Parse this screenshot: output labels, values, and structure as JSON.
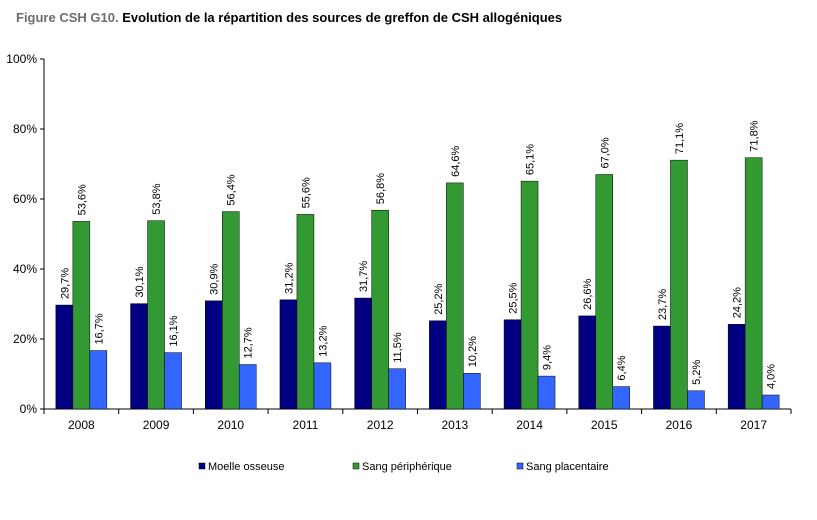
{
  "title": {
    "prefix": "Figure CSH G10.",
    "main": "Evolution de la répartition des sources de greffon de CSH allogéniques"
  },
  "colors": {
    "moelle": "#000080",
    "sang_peripherique": "#339933",
    "sang_placentaire": "#3366ff",
    "axis": "#000000",
    "bar_stroke": "#000000"
  },
  "chart_data": {
    "type": "bar",
    "title": "Evolution de la répartition des sources de greffon de CSH allogéniques",
    "xlabel": "",
    "ylabel": "",
    "categories": [
      "2008",
      "2009",
      "2010",
      "2011",
      "2012",
      "2013",
      "2014",
      "2015",
      "2016",
      "2017"
    ],
    "series": [
      {
        "name": "Moelle osseuse",
        "values": [
          29.7,
          30.1,
          30.9,
          31.2,
          31.7,
          25.2,
          25.5,
          26.6,
          23.7,
          24.2
        ],
        "labels": [
          "29,7%",
          "30,1%",
          "30,9%",
          "31,2%",
          "31,7%",
          "25,2%",
          "25,5%",
          "26,6%",
          "23,7%",
          "24,2%"
        ]
      },
      {
        "name": "Sang périphérique",
        "values": [
          53.6,
          53.8,
          56.4,
          55.6,
          56.8,
          64.6,
          65.1,
          67.0,
          71.1,
          71.8
        ],
        "labels": [
          "53,6%",
          "53,8%",
          "56,4%",
          "55,6%",
          "56,8%",
          "64,6%",
          "65,1%",
          "67,0%",
          "71,1%",
          "71,8%"
        ]
      },
      {
        "name": "Sang placentaire",
        "values": [
          16.7,
          16.1,
          12.7,
          13.2,
          11.5,
          10.2,
          9.4,
          6.4,
          5.2,
          4.0
        ],
        "labels": [
          "16,7%",
          "16,1%",
          "12,7%",
          "13,2%",
          "11,5%",
          "10,2%",
          "9,4%",
          "6,4%",
          "5,2%",
          "4,0%"
        ]
      }
    ],
    "ylim": [
      0,
      100
    ],
    "yticks": [
      0,
      20,
      40,
      60,
      80,
      100
    ],
    "ytick_labels": [
      "0%",
      "20%",
      "40%",
      "60%",
      "80%",
      "100%"
    ],
    "grid": false,
    "legend": "bottom"
  }
}
